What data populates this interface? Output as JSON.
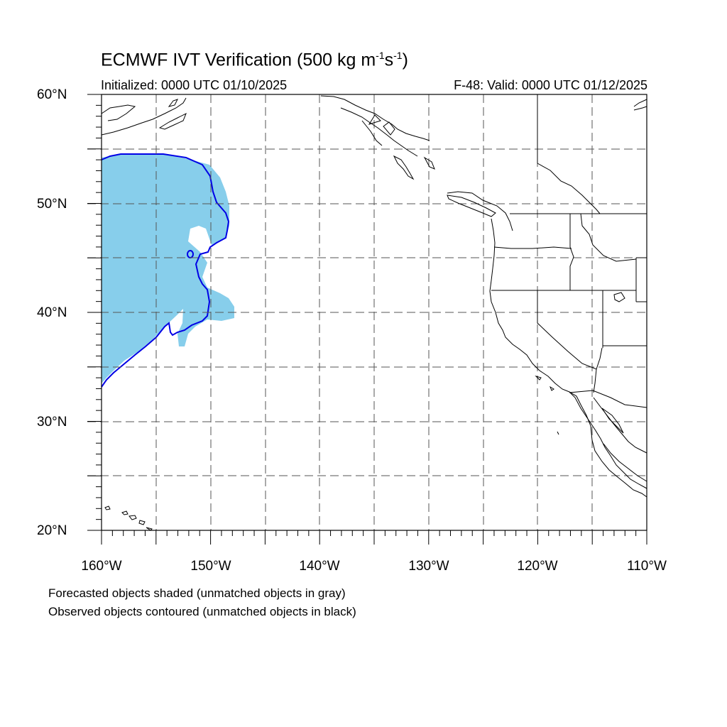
{
  "title": {
    "main": "ECMWF IVT Verification (500 kg m",
    "exp1": "-1",
    "mid": "s",
    "exp2": "-1",
    "end": ")"
  },
  "subtitle": {
    "initialized": "Initialized: 0000 UTC 01/10/2025",
    "valid": "F-48: Valid: 0000 UTC 01/12/2025"
  },
  "axes": {
    "lat_labels": [
      "60°N",
      "50°N",
      "40°N",
      "30°N",
      "20°N"
    ],
    "lon_labels": [
      "160°W",
      "150°W",
      "140°W",
      "130°W",
      "120°W",
      "110°W"
    ],
    "lat_range": [
      20,
      60
    ],
    "lon_range": [
      -160,
      -110
    ],
    "grid": true
  },
  "legend_notes": {
    "line1": "Forecasted objects shaded (unmatched objects in gray)",
    "line2": "Observed objects contoured (unmatched objects in black)"
  },
  "colors": {
    "forecast_fill": "#87ceeb",
    "observed_contour": "#0000e6",
    "coastline": "#000000",
    "grid": "#555555"
  }
}
